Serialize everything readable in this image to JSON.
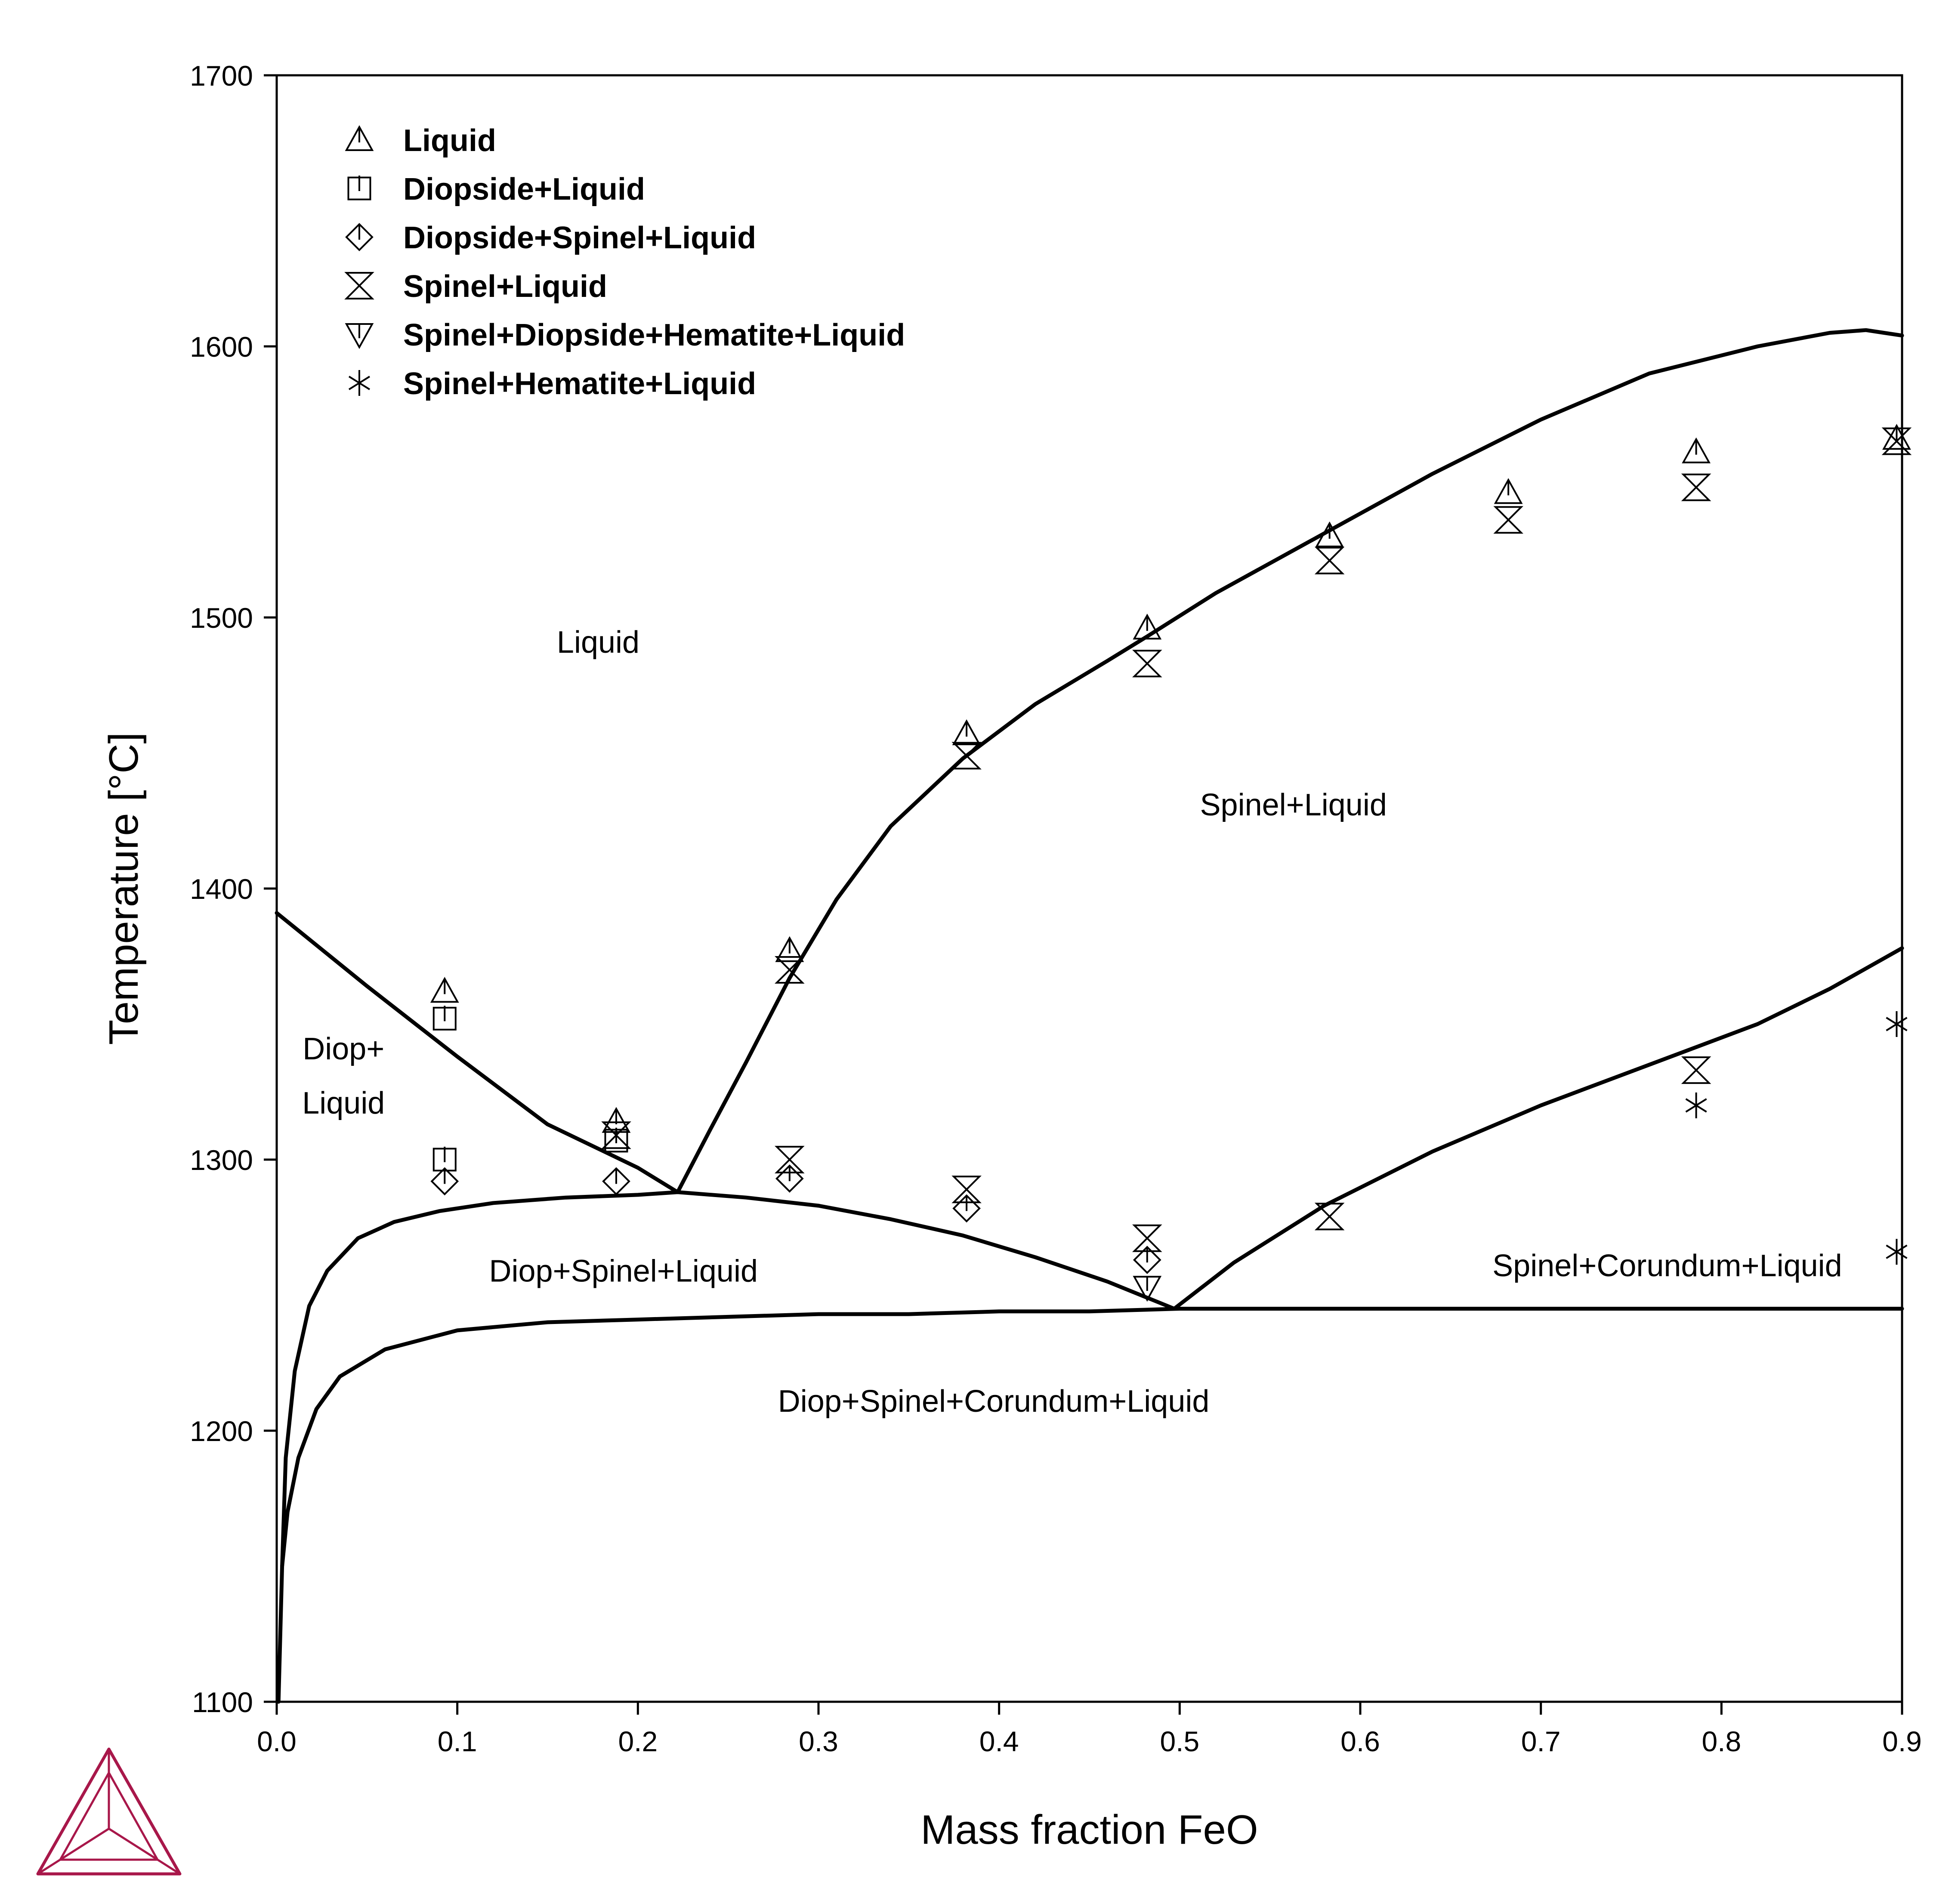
{
  "chart_data": {
    "type": "scatter",
    "xlabel": "Mass fraction FeO",
    "ylabel": "Temperature [°C]",
    "xlim": [
      0.0,
      0.9
    ],
    "ylim": [
      1100,
      1700
    ],
    "xticks": [
      "0.0",
      "0.1",
      "0.2",
      "0.3",
      "0.4",
      "0.5",
      "0.6",
      "0.7",
      "0.8",
      "0.9"
    ],
    "yticks": [
      "1100",
      "1200",
      "1300",
      "1400",
      "1500",
      "1600",
      "1700"
    ],
    "grid": false,
    "legend_position": "top-left",
    "legend": [
      {
        "label": "Liquid",
        "marker": "triangle-up"
      },
      {
        "label": "Diopside+Liquid",
        "marker": "square"
      },
      {
        "label": "Diopside+Spinel+Liquid",
        "marker": "diamond"
      },
      {
        "label": "Spinel+Liquid",
        "marker": "hourglass"
      },
      {
        "label": "Spinel+Diopside+Hematite+Liquid",
        "marker": "triangle-down"
      },
      {
        "label": "Spinel+Hematite+Liquid",
        "marker": "asterisk"
      }
    ],
    "series": [
      {
        "name": "Liquid",
        "marker": "triangle-up",
        "x": [
          0.093,
          0.188,
          0.284,
          0.382,
          0.482,
          0.583,
          0.682,
          0.786,
          0.897
        ],
        "y": [
          1362,
          1314,
          1377,
          1457,
          1496,
          1530,
          1546,
          1561,
          1566
        ]
      },
      {
        "name": "Diopside+Liquid",
        "marker": "square",
        "x": [
          0.093,
          0.093,
          0.188
        ],
        "y": [
          1352,
          1300,
          1307
        ]
      },
      {
        "name": "Diopside+Spinel+Liquid",
        "marker": "diamond",
        "x": [
          0.093,
          0.188,
          0.284,
          0.382,
          0.482
        ],
        "y": [
          1292,
          1292,
          1293,
          1282,
          1263
        ]
      },
      {
        "name": "Spinel+Liquid",
        "marker": "hourglass",
        "x": [
          0.188,
          0.284,
          0.284,
          0.382,
          0.382,
          0.482,
          0.482,
          0.583,
          0.583,
          0.682,
          0.786,
          0.786,
          0.897
        ],
        "y": [
          1309,
          1370,
          1300,
          1449,
          1289,
          1483,
          1271,
          1521,
          1279,
          1536,
          1548,
          1333,
          1565
        ]
      },
      {
        "name": "Spinel+Diopside+Hematite+Liquid",
        "marker": "triangle-down",
        "x": [
          0.482
        ],
        "y": [
          1253
        ]
      },
      {
        "name": "Spinel+Hematite+Liquid",
        "marker": "asterisk",
        "x": [
          0.786,
          0.897,
          0.897
        ],
        "y": [
          1320,
          1350,
          1266
        ]
      }
    ],
    "boundaries": [
      {
        "x": [
          0.0,
          0.05,
          0.1,
          0.15,
          0.2,
          0.222
        ],
        "y": [
          1391,
          1364,
          1338,
          1313,
          1297,
          1288
        ]
      },
      {
        "x": [
          0.222,
          0.24,
          0.26,
          0.284,
          0.31,
          0.34,
          0.38,
          0.42,
          0.46,
          0.482,
          0.52,
          0.58,
          0.64,
          0.7,
          0.76,
          0.82,
          0.86,
          0.88,
          0.89,
          0.9
        ],
        "y": [
          1288,
          1311,
          1336,
          1367,
          1396,
          1423,
          1448,
          1468,
          1484,
          1493,
          1509,
          1531,
          1553,
          1573,
          1590,
          1600,
          1605,
          1606,
          1605,
          1604
        ]
      },
      {
        "x": [
          0.003,
          0.005,
          0.01,
          0.018,
          0.028,
          0.045,
          0.065,
          0.09,
          0.12,
          0.16,
          0.2,
          0.222,
          0.26,
          0.3,
          0.34,
          0.38,
          0.42,
          0.46,
          0.497
        ],
        "y": [
          1150,
          1190,
          1222,
          1246,
          1259,
          1271,
          1277,
          1281,
          1284,
          1286,
          1287,
          1288,
          1286,
          1283,
          1278,
          1272,
          1264,
          1255,
          1245
        ]
      },
      {
        "x": [
          0.497,
          0.53,
          0.58,
          0.64,
          0.7,
          0.76,
          0.82,
          0.86,
          0.9
        ],
        "y": [
          1245,
          1262,
          1283,
          1303,
          1320,
          1335,
          1350,
          1363,
          1378
        ]
      },
      {
        "x": [
          0.001,
          0.003,
          0.006,
          0.012,
          0.022,
          0.035,
          0.06,
          0.1,
          0.15,
          0.2,
          0.25,
          0.3,
          0.35,
          0.4,
          0.45,
          0.5,
          0.6,
          0.7,
          0.8,
          0.9
        ],
        "y": [
          1100,
          1150,
          1170,
          1190,
          1208,
          1220,
          1230,
          1237,
          1240,
          1241,
          1242,
          1243,
          1243,
          1244,
          1244,
          1245,
          1245,
          1245,
          1245,
          1245
        ]
      }
    ],
    "region_labels": [
      {
        "text": "Liquid",
        "x": 0.178,
        "y": 1487
      },
      {
        "text": "Spinel+Liquid",
        "x": 0.563,
        "y": 1427
      },
      {
        "text": "Diop+",
        "x": 0.037,
        "y": 1337
      },
      {
        "text": "Liquid",
        "x": 0.037,
        "y": 1317
      },
      {
        "text": "Diop+Spinel+Liquid",
        "x": 0.192,
        "y": 1255
      },
      {
        "text": "Spinel+Corundum+Liquid",
        "x": 0.77,
        "y": 1257
      },
      {
        "text": "Diop+Spinel+Corundum+Liquid",
        "x": 0.397,
        "y": 1207
      }
    ]
  },
  "logo": {
    "color": "#a8174a",
    "icon": "thermo-calc-logo-icon"
  }
}
